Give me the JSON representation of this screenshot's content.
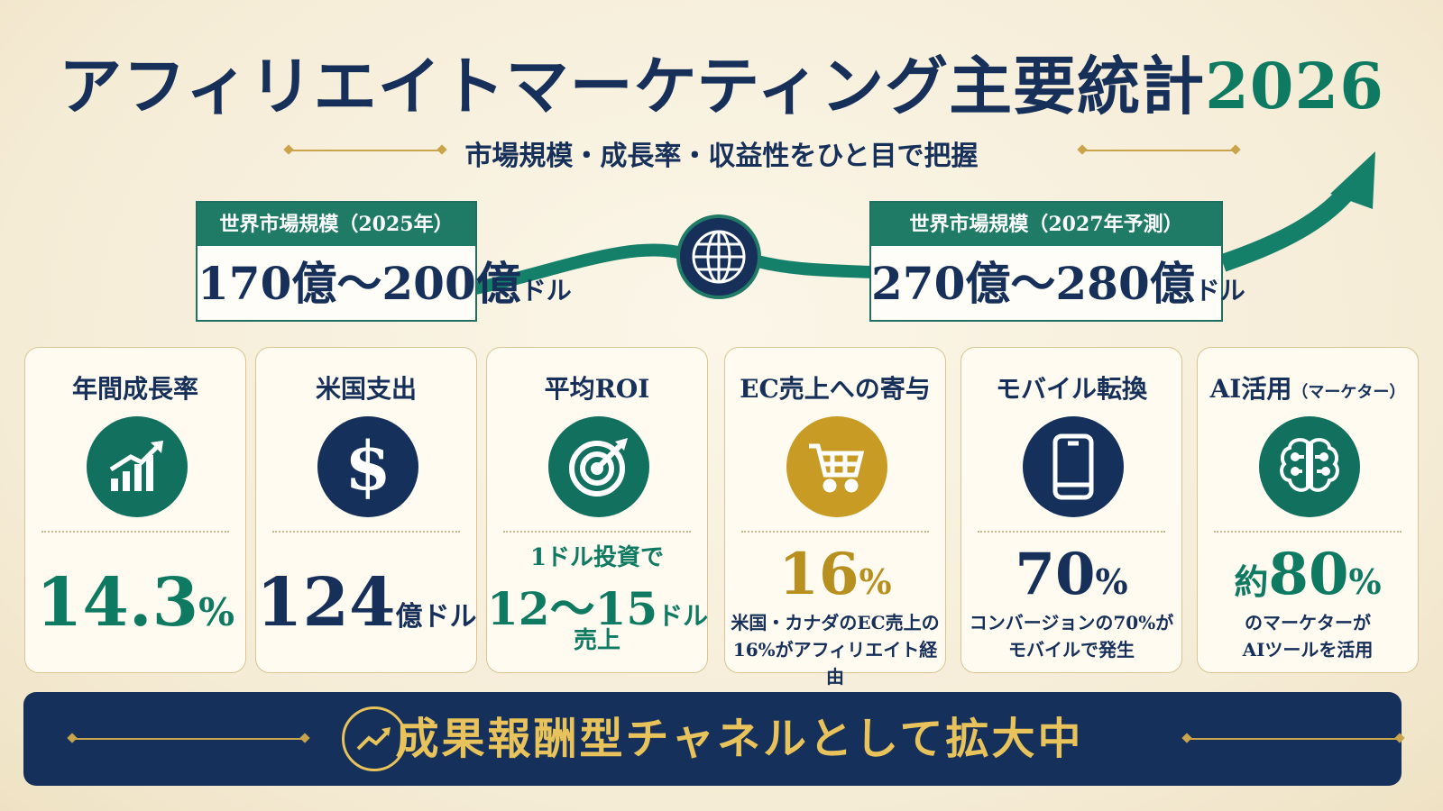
{
  "header": {
    "title": "アフィリエイトマーケティング主要統計",
    "year": "2026",
    "subtitle": "市場規模・成長率・収益性をひと目で把握"
  },
  "market": {
    "current": {
      "label": "世界市場規模（2025年）",
      "value": "170億〜200億",
      "unit": "ドル"
    },
    "forecast": {
      "label": "世界市場規模（2027年予測）",
      "value": "270億〜280億",
      "unit": "ドル"
    },
    "icon": "globe-icon"
  },
  "cards": [
    {
      "title": "年間成長率",
      "icon": "growth-chart-icon",
      "value": "14.3",
      "unit": "%",
      "color": "#12705e"
    },
    {
      "title": "米国支出",
      "icon": "dollar-icon",
      "value": "124",
      "unit": "億ドル",
      "color": "#15305a"
    },
    {
      "title": "平均ROI",
      "icon": "target-icon",
      "prefix": "1ドル投資で",
      "value": "12〜15",
      "unit": "ドル",
      "suffix": "売上",
      "color": "#12705e"
    },
    {
      "title": "EC売上への寄与",
      "icon": "shopping-cart-icon",
      "value": "16",
      "unit": "%",
      "desc1": "米国・カナダのEC売上の",
      "desc2": "16%がアフィリエイト経由",
      "color": "#c89b24"
    },
    {
      "title": "モバイル転換",
      "icon": "smartphone-icon",
      "value": "70",
      "unit": "%",
      "desc1": "コンバージョンの70%が",
      "desc2": "モバイルで発生",
      "color": "#15305a"
    },
    {
      "title": "AI活用",
      "title_small": "（マーケター）",
      "icon": "brain-circuit-icon",
      "prefix": "約",
      "value": "80",
      "unit": "%",
      "desc1": "のマーケターが",
      "desc2": "AIツールを活用",
      "color": "#12705e"
    }
  ],
  "banner": {
    "text": "成果報酬型チャネルとして拡大中",
    "icon": "trend-up-icon"
  }
}
